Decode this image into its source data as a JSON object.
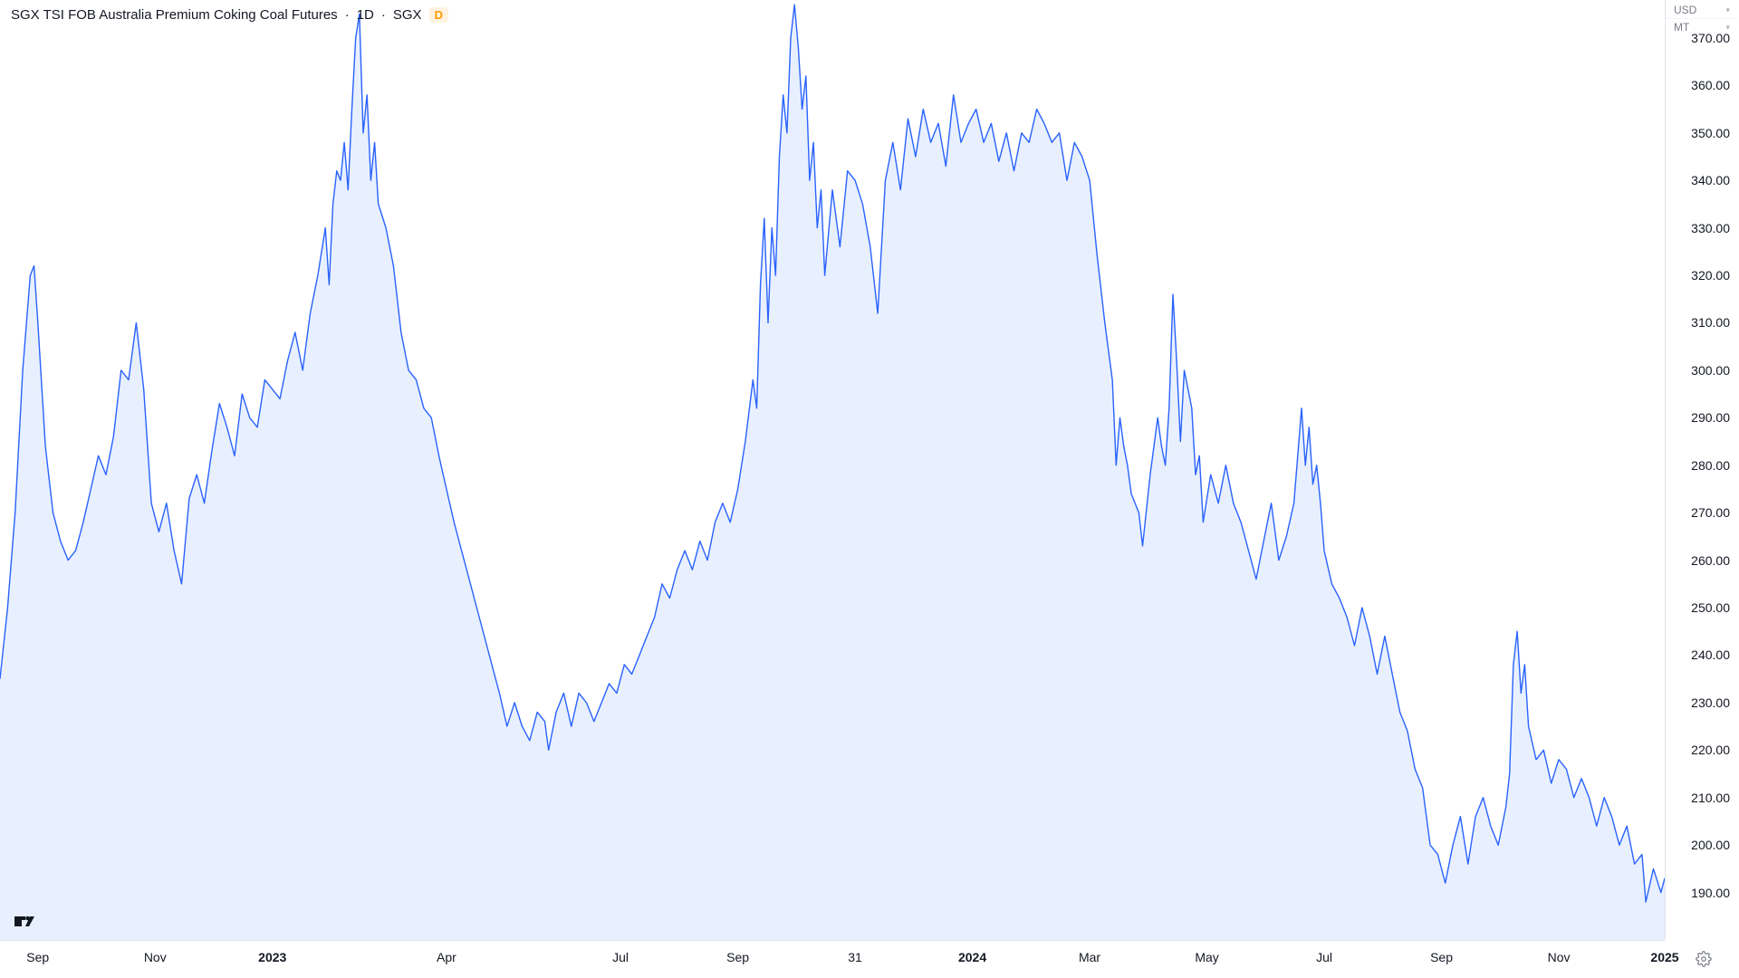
{
  "header": {
    "title": "SGX TSI FOB Australia Premium Coking Coal Futures",
    "interval": "1D",
    "exchange": "SGX",
    "badge": "D"
  },
  "units": {
    "currency": "USD",
    "measure": "MT"
  },
  "logo": "TV",
  "chart": {
    "type": "area",
    "line_color": "#2962ff",
    "fill_color": "#d6e4ff",
    "fill_opacity": 0.55,
    "line_width": 1.4,
    "background_color": "#ffffff",
    "axis_color": "#e0e3eb",
    "tick_fontsize": 14,
    "tick_color": "#131722",
    "y": {
      "min": 180,
      "max": 378,
      "ticks": [
        190,
        200,
        210,
        220,
        230,
        240,
        250,
        260,
        270,
        280,
        290,
        300,
        310,
        320,
        330,
        340,
        350,
        360,
        370
      ],
      "tick_decimals": 2
    },
    "x": {
      "min": 0,
      "max": 880,
      "ticks": [
        {
          "pos": 20,
          "label": "Sep",
          "bold": false
        },
        {
          "pos": 82,
          "label": "Nov",
          "bold": false
        },
        {
          "pos": 144,
          "label": "2023",
          "bold": true
        },
        {
          "pos": 236,
          "label": "Apr",
          "bold": false
        },
        {
          "pos": 328,
          "label": "Jul",
          "bold": false
        },
        {
          "pos": 390,
          "label": "Sep",
          "bold": false
        },
        {
          "pos": 452,
          "label": "31",
          "bold": false
        },
        {
          "pos": 514,
          "label": "2024",
          "bold": true
        },
        {
          "pos": 576,
          "label": "Mar",
          "bold": false
        },
        {
          "pos": 638,
          "label": "May",
          "bold": false
        },
        {
          "pos": 700,
          "label": "Jul",
          "bold": false
        },
        {
          "pos": 762,
          "label": "Sep",
          "bold": false
        },
        {
          "pos": 824,
          "label": "Nov",
          "bold": false
        },
        {
          "pos": 880,
          "label": "2025",
          "bold": true
        }
      ]
    },
    "series": [
      [
        0,
        235
      ],
      [
        4,
        250
      ],
      [
        8,
        270
      ],
      [
        12,
        300
      ],
      [
        16,
        320
      ],
      [
        18,
        322
      ],
      [
        20,
        310
      ],
      [
        24,
        284
      ],
      [
        28,
        270
      ],
      [
        32,
        264
      ],
      [
        36,
        260
      ],
      [
        40,
        262
      ],
      [
        44,
        268
      ],
      [
        48,
        275
      ],
      [
        52,
        282
      ],
      [
        56,
        278
      ],
      [
        60,
        286
      ],
      [
        64,
        300
      ],
      [
        68,
        298
      ],
      [
        72,
        310
      ],
      [
        76,
        296
      ],
      [
        80,
        272
      ],
      [
        84,
        266
      ],
      [
        88,
        272
      ],
      [
        92,
        262
      ],
      [
        96,
        255
      ],
      [
        100,
        273
      ],
      [
        104,
        278
      ],
      [
        108,
        272
      ],
      [
        112,
        283
      ],
      [
        116,
        293
      ],
      [
        120,
        288
      ],
      [
        124,
        282
      ],
      [
        128,
        295
      ],
      [
        132,
        290
      ],
      [
        136,
        288
      ],
      [
        140,
        298
      ],
      [
        144,
        296
      ],
      [
        148,
        294
      ],
      [
        152,
        302
      ],
      [
        156,
        308
      ],
      [
        160,
        300
      ],
      [
        164,
        312
      ],
      [
        168,
        320
      ],
      [
        172,
        330
      ],
      [
        174,
        318
      ],
      [
        176,
        335
      ],
      [
        178,
        342
      ],
      [
        180,
        340
      ],
      [
        182,
        348
      ],
      [
        184,
        338
      ],
      [
        186,
        355
      ],
      [
        188,
        370
      ],
      [
        190,
        375
      ],
      [
        192,
        350
      ],
      [
        194,
        358
      ],
      [
        196,
        340
      ],
      [
        198,
        348
      ],
      [
        200,
        335
      ],
      [
        204,
        330
      ],
      [
        208,
        322
      ],
      [
        212,
        308
      ],
      [
        216,
        300
      ],
      [
        220,
        298
      ],
      [
        224,
        292
      ],
      [
        228,
        290
      ],
      [
        232,
        282
      ],
      [
        236,
        275
      ],
      [
        240,
        268
      ],
      [
        244,
        262
      ],
      [
        248,
        256
      ],
      [
        252,
        250
      ],
      [
        256,
        244
      ],
      [
        260,
        238
      ],
      [
        264,
        232
      ],
      [
        268,
        225
      ],
      [
        272,
        230
      ],
      [
        276,
        225
      ],
      [
        280,
        222
      ],
      [
        284,
        228
      ],
      [
        288,
        226
      ],
      [
        290,
        220
      ],
      [
        294,
        228
      ],
      [
        298,
        232
      ],
      [
        302,
        225
      ],
      [
        306,
        232
      ],
      [
        310,
        230
      ],
      [
        314,
        226
      ],
      [
        318,
        230
      ],
      [
        322,
        234
      ],
      [
        326,
        232
      ],
      [
        330,
        238
      ],
      [
        334,
        236
      ],
      [
        338,
        240
      ],
      [
        342,
        244
      ],
      [
        346,
        248
      ],
      [
        350,
        255
      ],
      [
        354,
        252
      ],
      [
        358,
        258
      ],
      [
        362,
        262
      ],
      [
        366,
        258
      ],
      [
        370,
        264
      ],
      [
        374,
        260
      ],
      [
        378,
        268
      ],
      [
        382,
        272
      ],
      [
        386,
        268
      ],
      [
        390,
        275
      ],
      [
        394,
        285
      ],
      [
        398,
        298
      ],
      [
        400,
        292
      ],
      [
        402,
        318
      ],
      [
        404,
        332
      ],
      [
        406,
        310
      ],
      [
        408,
        330
      ],
      [
        410,
        320
      ],
      [
        412,
        345
      ],
      [
        414,
        358
      ],
      [
        416,
        350
      ],
      [
        418,
        370
      ],
      [
        420,
        377
      ],
      [
        422,
        368
      ],
      [
        424,
        355
      ],
      [
        426,
        362
      ],
      [
        428,
        340
      ],
      [
        430,
        348
      ],
      [
        432,
        330
      ],
      [
        434,
        338
      ],
      [
        436,
        320
      ],
      [
        440,
        338
      ],
      [
        444,
        326
      ],
      [
        448,
        342
      ],
      [
        452,
        340
      ],
      [
        456,
        335
      ],
      [
        460,
        326
      ],
      [
        464,
        312
      ],
      [
        468,
        340
      ],
      [
        472,
        348
      ],
      [
        476,
        338
      ],
      [
        480,
        353
      ],
      [
        484,
        345
      ],
      [
        488,
        355
      ],
      [
        492,
        348
      ],
      [
        496,
        352
      ],
      [
        500,
        343
      ],
      [
        504,
        358
      ],
      [
        508,
        348
      ],
      [
        512,
        352
      ],
      [
        516,
        355
      ],
      [
        520,
        348
      ],
      [
        524,
        352
      ],
      [
        528,
        344
      ],
      [
        532,
        350
      ],
      [
        536,
        342
      ],
      [
        540,
        350
      ],
      [
        544,
        348
      ],
      [
        548,
        355
      ],
      [
        552,
        352
      ],
      [
        556,
        348
      ],
      [
        560,
        350
      ],
      [
        564,
        340
      ],
      [
        568,
        348
      ],
      [
        572,
        345
      ],
      [
        576,
        340
      ],
      [
        580,
        324
      ],
      [
        584,
        310
      ],
      [
        588,
        298
      ],
      [
        590,
        280
      ],
      [
        592,
        290
      ],
      [
        594,
        284
      ],
      [
        596,
        280
      ],
      [
        598,
        274
      ],
      [
        600,
        272
      ],
      [
        602,
        270
      ],
      [
        604,
        263
      ],
      [
        608,
        278
      ],
      [
        612,
        290
      ],
      [
        614,
        284
      ],
      [
        616,
        280
      ],
      [
        618,
        292
      ],
      [
        620,
        316
      ],
      [
        622,
        302
      ],
      [
        624,
        285
      ],
      [
        626,
        300
      ],
      [
        628,
        296
      ],
      [
        630,
        292
      ],
      [
        632,
        278
      ],
      [
        634,
        282
      ],
      [
        636,
        268
      ],
      [
        640,
        278
      ],
      [
        644,
        272
      ],
      [
        648,
        280
      ],
      [
        652,
        272
      ],
      [
        656,
        268
      ],
      [
        660,
        262
      ],
      [
        664,
        256
      ],
      [
        668,
        264
      ],
      [
        672,
        272
      ],
      [
        676,
        260
      ],
      [
        680,
        265
      ],
      [
        684,
        272
      ],
      [
        688,
        292
      ],
      [
        690,
        280
      ],
      [
        692,
        288
      ],
      [
        694,
        276
      ],
      [
        696,
        280
      ],
      [
        698,
        272
      ],
      [
        700,
        262
      ],
      [
        704,
        255
      ],
      [
        708,
        252
      ],
      [
        712,
        248
      ],
      [
        716,
        242
      ],
      [
        720,
        250
      ],
      [
        724,
        244
      ],
      [
        728,
        236
      ],
      [
        732,
        244
      ],
      [
        736,
        236
      ],
      [
        740,
        228
      ],
      [
        744,
        224
      ],
      [
        748,
        216
      ],
      [
        752,
        212
      ],
      [
        756,
        200
      ],
      [
        760,
        198
      ],
      [
        764,
        192
      ],
      [
        768,
        200
      ],
      [
        772,
        206
      ],
      [
        776,
        196
      ],
      [
        780,
        206
      ],
      [
        784,
        210
      ],
      [
        788,
        204
      ],
      [
        792,
        200
      ],
      [
        796,
        208
      ],
      [
        798,
        215
      ],
      [
        800,
        238
      ],
      [
        802,
        245
      ],
      [
        804,
        232
      ],
      [
        806,
        238
      ],
      [
        808,
        225
      ],
      [
        812,
        218
      ],
      [
        816,
        220
      ],
      [
        820,
        213
      ],
      [
        824,
        218
      ],
      [
        828,
        216
      ],
      [
        832,
        210
      ],
      [
        836,
        214
      ],
      [
        840,
        210
      ],
      [
        844,
        204
      ],
      [
        848,
        210
      ],
      [
        852,
        206
      ],
      [
        856,
        200
      ],
      [
        860,
        204
      ],
      [
        864,
        196
      ],
      [
        868,
        198
      ],
      [
        870,
        188
      ],
      [
        874,
        195
      ],
      [
        878,
        190
      ],
      [
        880,
        193
      ]
    ]
  }
}
